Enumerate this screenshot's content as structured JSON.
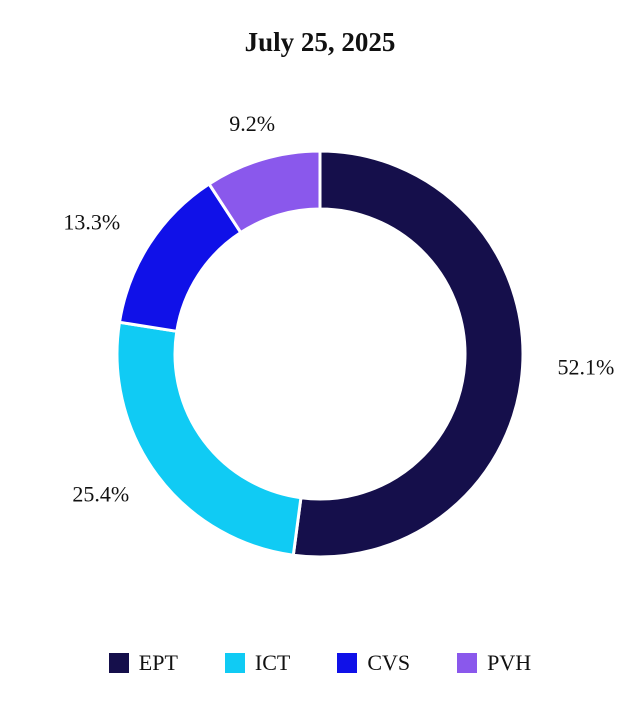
{
  "chart_data": {
    "type": "pie",
    "style": "donut",
    "title": "July 25, 2025",
    "categories": [
      "EPT",
      "ICT",
      "CVS",
      "PVH"
    ],
    "values": [
      52.1,
      25.4,
      13.3,
      9.2
    ],
    "labels": [
      "52.1%",
      "25.4%",
      "13.3%",
      "9.2%"
    ],
    "colors": [
      "#150f4b",
      "#10cbf4",
      "#1011e8",
      "#8a58ec"
    ],
    "legend": "bottom",
    "start_angle": "top",
    "direction": "clockwise"
  }
}
